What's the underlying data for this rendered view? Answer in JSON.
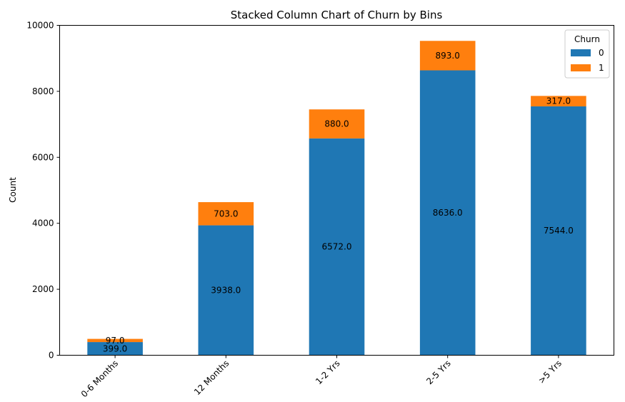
{
  "chart_data": {
    "type": "bar",
    "stacked": true,
    "title": "Stacked Column Chart of Churn by Bins",
    "xlabel": "",
    "ylabel": "Count",
    "ylim": [
      0,
      10000
    ],
    "yticks": [
      0,
      2000,
      4000,
      6000,
      8000,
      10000
    ],
    "categories": [
      "0-6 Months",
      "12 Months",
      "1-2 Yrs",
      "2-5 Yrs",
      ">5 Yrs"
    ],
    "series": [
      {
        "name": "0",
        "color": "#1f77b4",
        "values": [
          399,
          3938,
          6572,
          8636,
          7544
        ],
        "labels": [
          "399.0",
          "3938.0",
          "6572.0",
          "8636.0",
          "7544.0"
        ]
      },
      {
        "name": "1",
        "color": "#ff7f0e",
        "values": [
          97,
          703,
          880,
          893,
          317
        ],
        "labels": [
          "97.0",
          "703.0",
          "880.0",
          "893.0",
          "317.0"
        ]
      }
    ],
    "legend": {
      "title": "Churn",
      "position": "top-right"
    },
    "grid": false
  }
}
